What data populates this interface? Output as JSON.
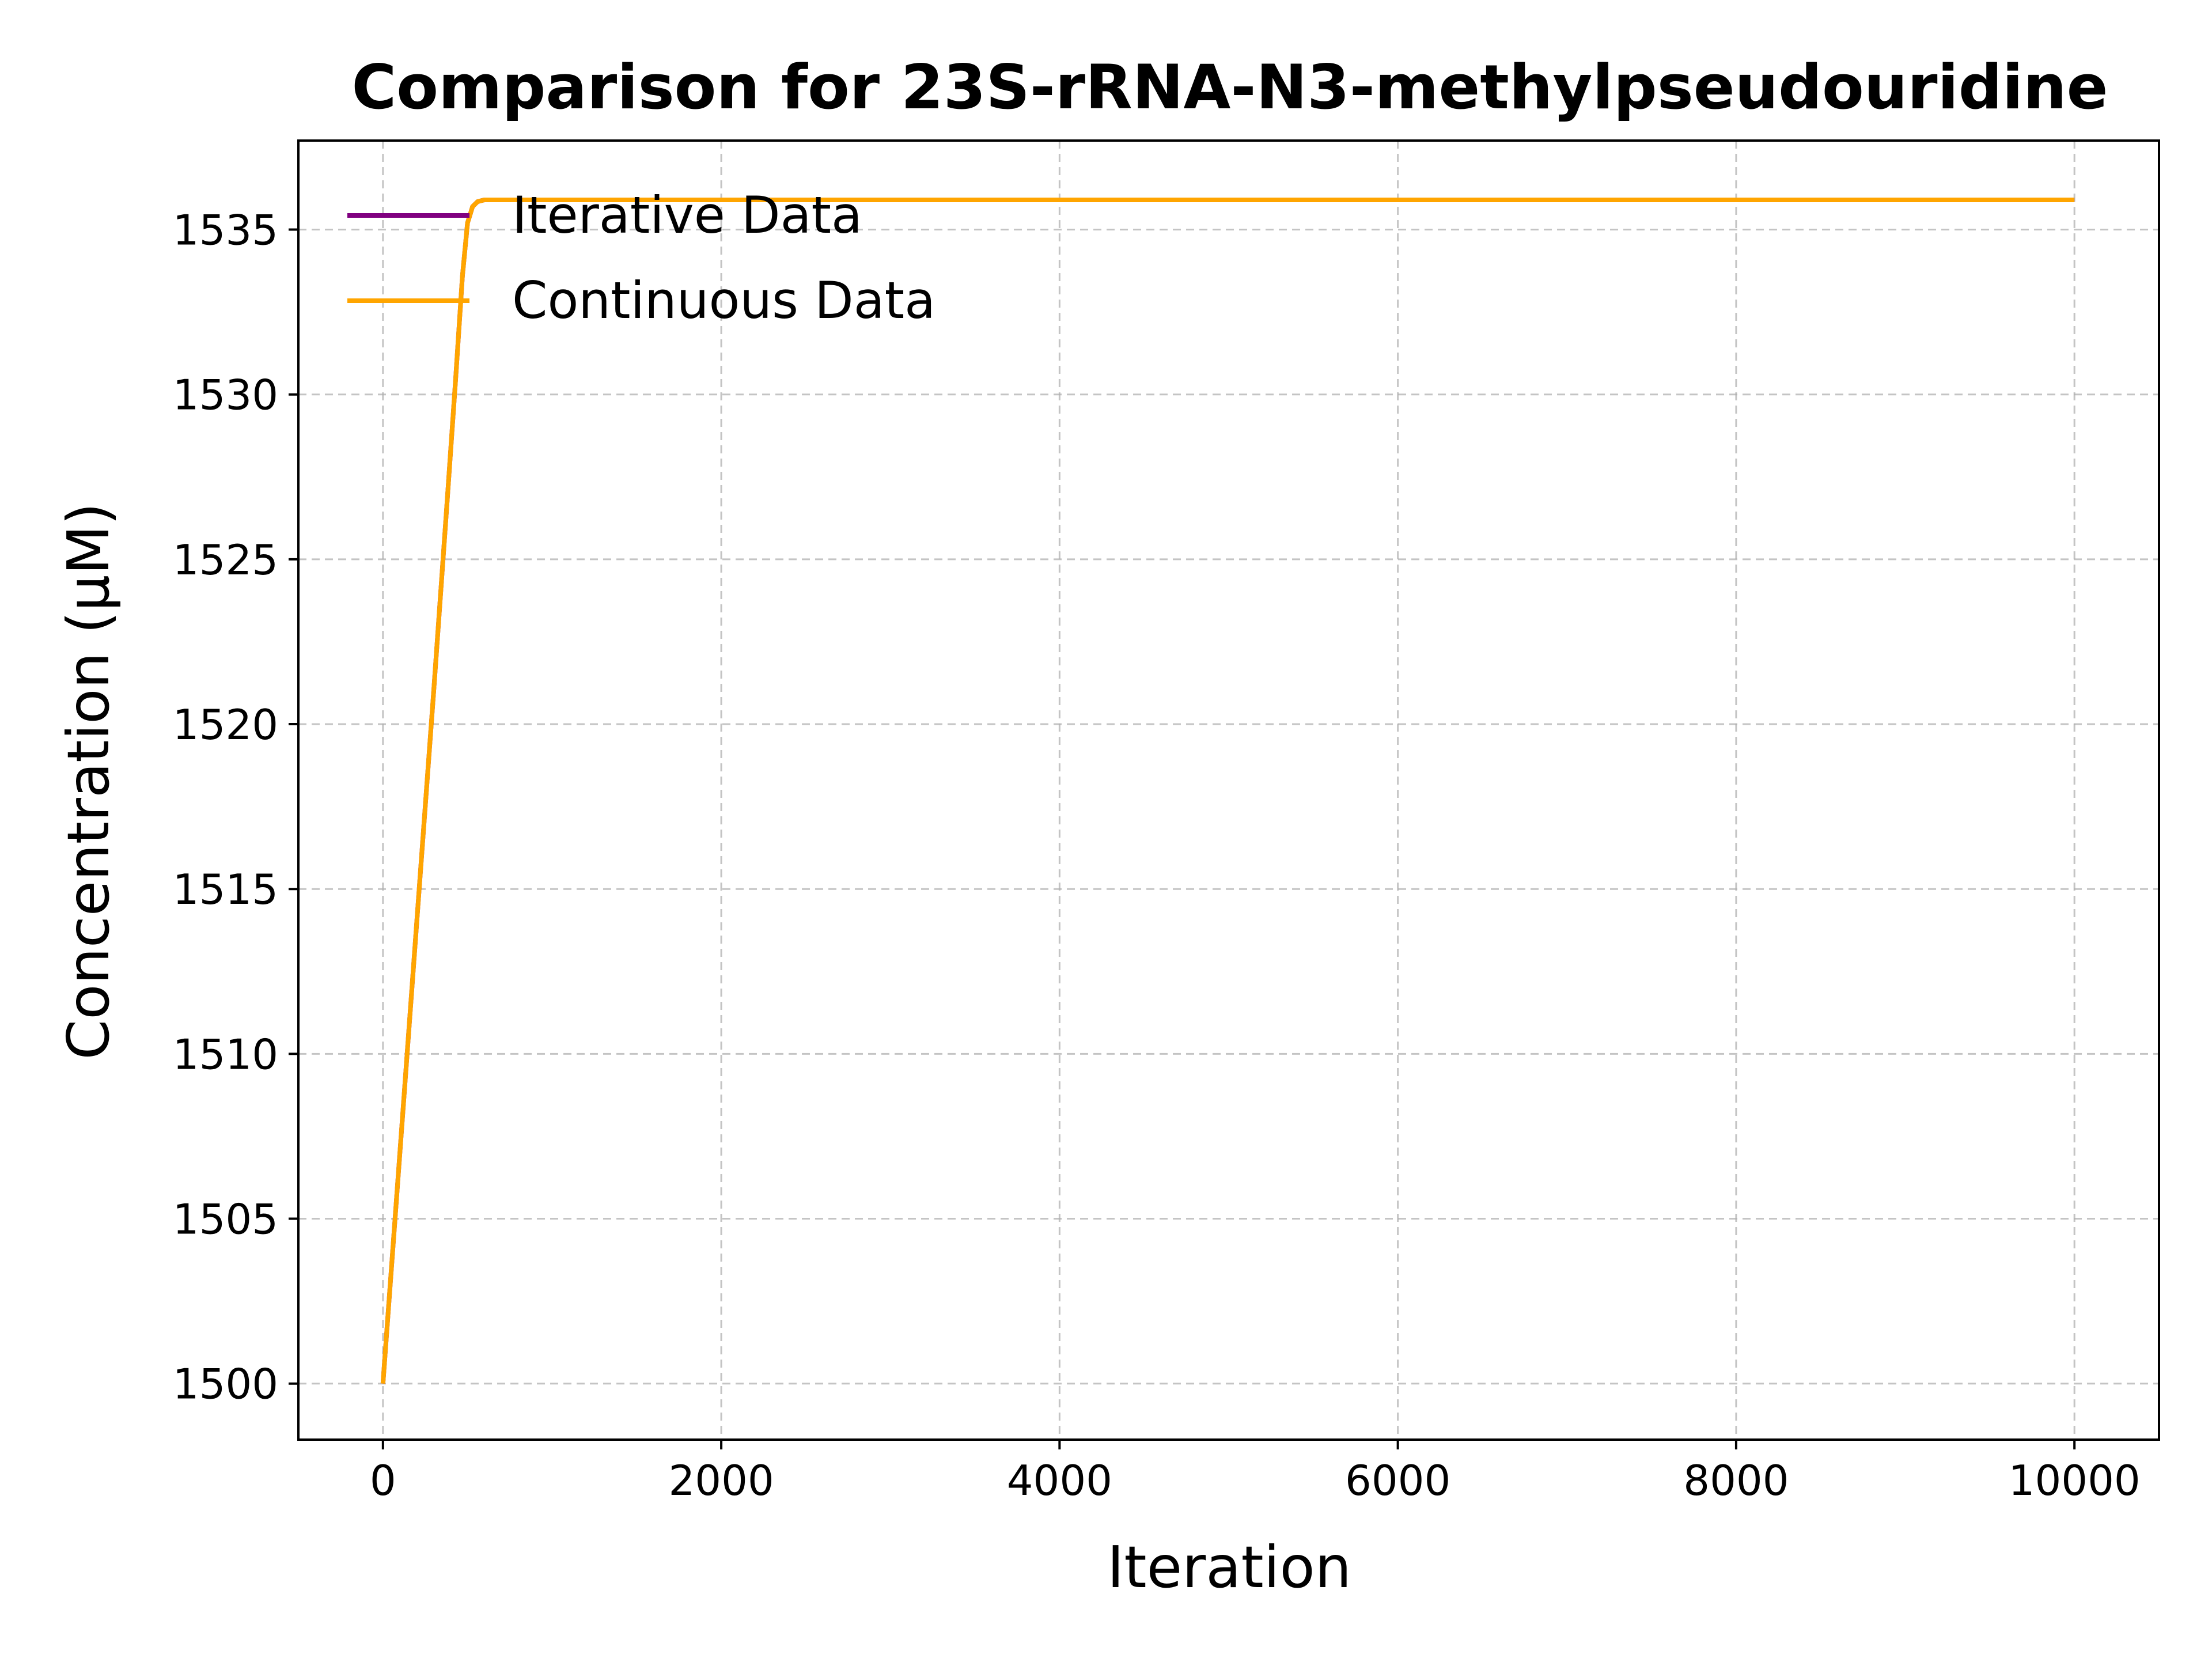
{
  "chart_data": {
    "type": "line",
    "title": "Comparison for 23S-rRNA-N3-methylpseudouridine",
    "xlabel": "Iteration",
    "ylabel": "Concentration (μM)",
    "xlim": [
      -500,
      10500
    ],
    "ylim": [
      1498.3,
      1537.7
    ],
    "x_ticks": [
      0,
      2000,
      4000,
      6000,
      8000,
      10000
    ],
    "x_tick_labels": [
      "0",
      "2000",
      "4000",
      "6000",
      "8000",
      "10000"
    ],
    "y_ticks": [
      1500,
      1505,
      1510,
      1515,
      1520,
      1525,
      1530,
      1535
    ],
    "y_tick_labels": [
      "1500",
      "1505",
      "1510",
      "1515",
      "1520",
      "1525",
      "1530",
      "1535"
    ],
    "grid": true,
    "legend_position": "upper-left",
    "series": [
      {
        "name": "Iterative Data",
        "color": "#800080",
        "x": [
          0,
          100,
          200,
          300,
          380,
          430,
          470,
          500,
          530,
          560,
          600,
          1000,
          2000,
          4000,
          6000,
          8000,
          10000
        ],
        "y": [
          1500,
          1507.0,
          1514.0,
          1521.0,
          1526.8,
          1530.5,
          1533.6,
          1535.2,
          1535.7,
          1535.85,
          1535.9,
          1535.9,
          1535.9,
          1535.9,
          1535.9,
          1535.9,
          1535.9
        ]
      },
      {
        "name": "Continuous Data",
        "color": "#FFA500",
        "x": [
          0,
          100,
          200,
          300,
          380,
          430,
          470,
          500,
          530,
          560,
          600,
          1000,
          2000,
          4000,
          6000,
          8000,
          10000
        ],
        "y": [
          1500,
          1507.0,
          1514.0,
          1521.0,
          1526.8,
          1530.5,
          1533.6,
          1535.2,
          1535.7,
          1535.85,
          1535.9,
          1535.9,
          1535.9,
          1535.9,
          1535.9,
          1535.9,
          1535.9
        ]
      }
    ]
  }
}
